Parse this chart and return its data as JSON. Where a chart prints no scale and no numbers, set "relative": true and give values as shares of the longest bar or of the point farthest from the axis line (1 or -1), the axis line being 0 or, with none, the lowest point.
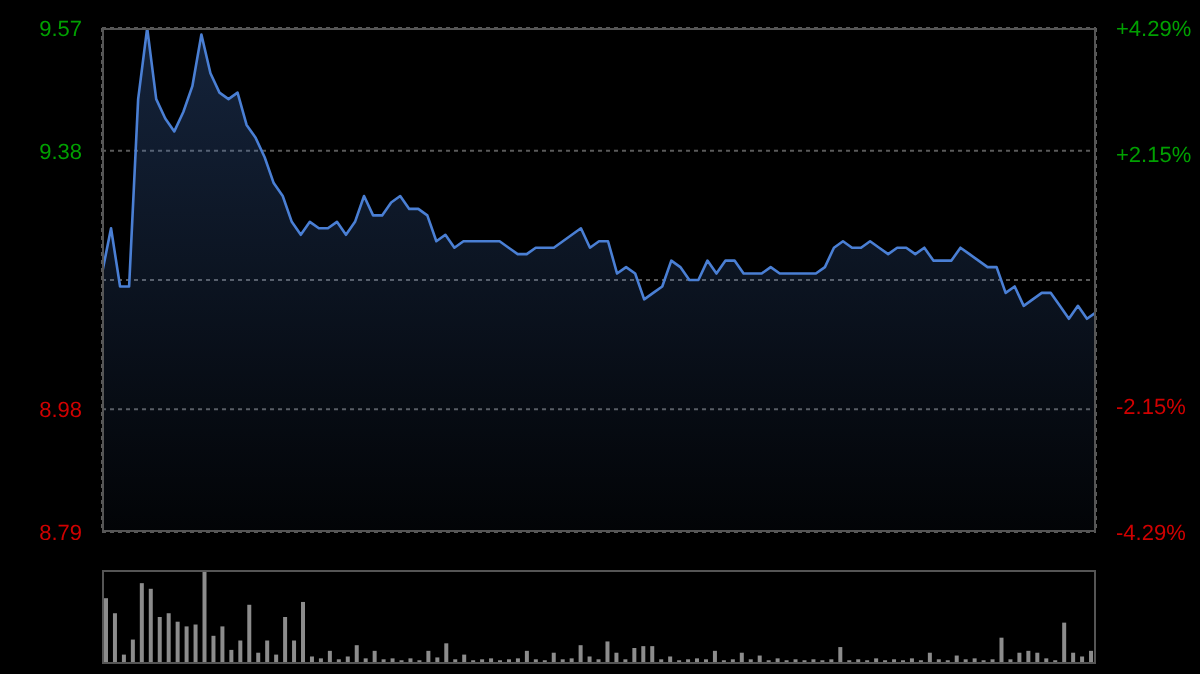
{
  "chart_data": [
    {
      "type": "area",
      "color": "#4a7fd4",
      "grid": true,
      "tick_labels": "y",
      "ylim": [
        8.79,
        9.57
      ],
      "yticks": [
        9.57,
        9.38,
        {
          "value": 9.18,
          "label": null
        },
        8.98,
        8.79
      ],
      "y2lim": [
        -4.29,
        4.29
      ],
      "y2ticks": [
        {
          "value": 4.29,
          "label": "+4.29%"
        },
        {
          "value": 2.15,
          "label": "+2.15%"
        },
        {
          "value": 0,
          "label": null
        },
        {
          "value": -2.15,
          "label": "-2.15%"
        },
        {
          "value": -4.29,
          "label": "-4.29%"
        }
      ],
      "categories": [
        null,
        null,
        null,
        null,
        null,
        null,
        null,
        null,
        null,
        null,
        null,
        null,
        null,
        null,
        null,
        null,
        null,
        null,
        null,
        null,
        null,
        null,
        null,
        null,
        null,
        null,
        null,
        null,
        null,
        null,
        null,
        null,
        null,
        null,
        null,
        null,
        null,
        null,
        null,
        null,
        null,
        null,
        null,
        null,
        null,
        null,
        null,
        null,
        null,
        null,
        null,
        null,
        null,
        null,
        null,
        null,
        null,
        null,
        null,
        null,
        null,
        null,
        null,
        null,
        null,
        null,
        null,
        null,
        null,
        null,
        null,
        null,
        null,
        null,
        null,
        null,
        null,
        null,
        null,
        null,
        null,
        null,
        null,
        null,
        null,
        null,
        null,
        null,
        null,
        null,
        null,
        null,
        null,
        null,
        null,
        null,
        null,
        null,
        null,
        null,
        null,
        null,
        null,
        null,
        null,
        null,
        null,
        null,
        null,
        null,
        null
      ],
      "values": [
        9.19,
        9.26,
        9.17,
        9.17,
        9.46,
        9.57,
        9.46,
        9.43,
        9.41,
        9.44,
        9.48,
        9.56,
        9.5,
        9.47,
        9.46,
        9.47,
        9.42,
        9.4,
        9.37,
        9.33,
        9.31,
        9.27,
        9.25,
        9.27,
        9.26,
        9.26,
        9.27,
        9.25,
        9.27,
        9.31,
        9.28,
        9.28,
        9.3,
        9.31,
        9.29,
        9.29,
        9.28,
        9.24,
        9.25,
        9.23,
        9.24,
        9.24,
        9.24,
        9.24,
        9.24,
        9.23,
        9.22,
        9.22,
        9.23,
        9.23,
        9.23,
        9.24,
        9.25,
        9.26,
        9.23,
        9.24,
        9.24,
        9.19,
        9.2,
        9.19,
        9.15,
        9.16,
        9.17,
        9.21,
        9.2,
        9.18,
        9.18,
        9.21,
        9.19,
        9.21,
        9.21,
        9.19,
        9.19,
        9.19,
        9.2,
        9.19,
        9.19,
        9.19,
        9.19,
        9.19,
        9.2,
        9.23,
        9.24,
        9.23,
        9.23,
        9.24,
        9.23,
        9.22,
        9.23,
        9.23,
        9.22,
        9.23,
        9.21,
        9.21,
        9.21,
        9.23,
        9.22,
        9.21,
        9.2,
        9.2,
        9.16,
        9.17,
        9.14,
        9.15,
        9.16,
        9.16,
        9.14,
        9.12,
        9.14,
        9.12,
        9.13
      ]
    },
    {
      "type": "bar",
      "relative": true,
      "color": "#8c8c8c",
      "tick_labels": false,
      "categories": [
        null,
        null,
        null,
        null,
        null,
        null,
        null,
        null,
        null,
        null,
        null,
        null,
        null,
        null,
        null,
        null,
        null,
        null,
        null,
        null,
        null,
        null,
        null,
        null,
        null,
        null,
        null,
        null,
        null,
        null,
        null,
        null,
        null,
        null,
        null,
        null,
        null,
        null,
        null,
        null,
        null,
        null,
        null,
        null,
        null,
        null,
        null,
        null,
        null,
        null,
        null,
        null,
        null,
        null,
        null,
        null,
        null,
        null,
        null,
        null,
        null,
        null,
        null,
        null,
        null,
        null,
        null,
        null,
        null,
        null,
        null,
        null,
        null,
        null,
        null,
        null,
        null,
        null,
        null,
        null,
        null,
        null,
        null,
        null,
        null,
        null,
        null,
        null,
        null,
        null,
        null,
        null,
        null,
        null,
        null,
        null,
        null,
        null,
        null,
        null,
        null,
        null,
        null,
        null,
        null,
        null,
        null,
        null,
        null,
        null,
        null
      ],
      "values": [
        0.7,
        0.54,
        0.1,
        0.26,
        0.86,
        0.8,
        0.5,
        0.54,
        0.45,
        0.4,
        0.42,
        1.0,
        0.3,
        0.4,
        0.15,
        0.25,
        0.63,
        0.12,
        0.25,
        0.1,
        0.5,
        0.25,
        0.66,
        0.08,
        0.06,
        0.14,
        0.05,
        0.08,
        0.2,
        0.06,
        0.14,
        0.05,
        0.06,
        0.04,
        0.06,
        0.04,
        0.14,
        0.07,
        0.22,
        0.05,
        0.1,
        0.04,
        0.05,
        0.06,
        0.04,
        0.05,
        0.06,
        0.14,
        0.05,
        0.04,
        0.12,
        0.05,
        0.06,
        0.2,
        0.08,
        0.05,
        0.24,
        0.12,
        0.05,
        0.17,
        0.19,
        0.19,
        0.05,
        0.08,
        0.04,
        0.05,
        0.06,
        0.05,
        0.14,
        0.04,
        0.05,
        0.12,
        0.05,
        0.09,
        0.04,
        0.06,
        0.04,
        0.05,
        0.04,
        0.05,
        0.04,
        0.05,
        0.18,
        0.04,
        0.05,
        0.04,
        0.06,
        0.04,
        0.05,
        0.04,
        0.06,
        0.04,
        0.12,
        0.05,
        0.04,
        0.09,
        0.05,
        0.06,
        0.04,
        0.05,
        0.28,
        0.05,
        0.12,
        0.14,
        0.12,
        0.06,
        0.04,
        0.44,
        0.12,
        0.08,
        0.14
      ]
    }
  ]
}
